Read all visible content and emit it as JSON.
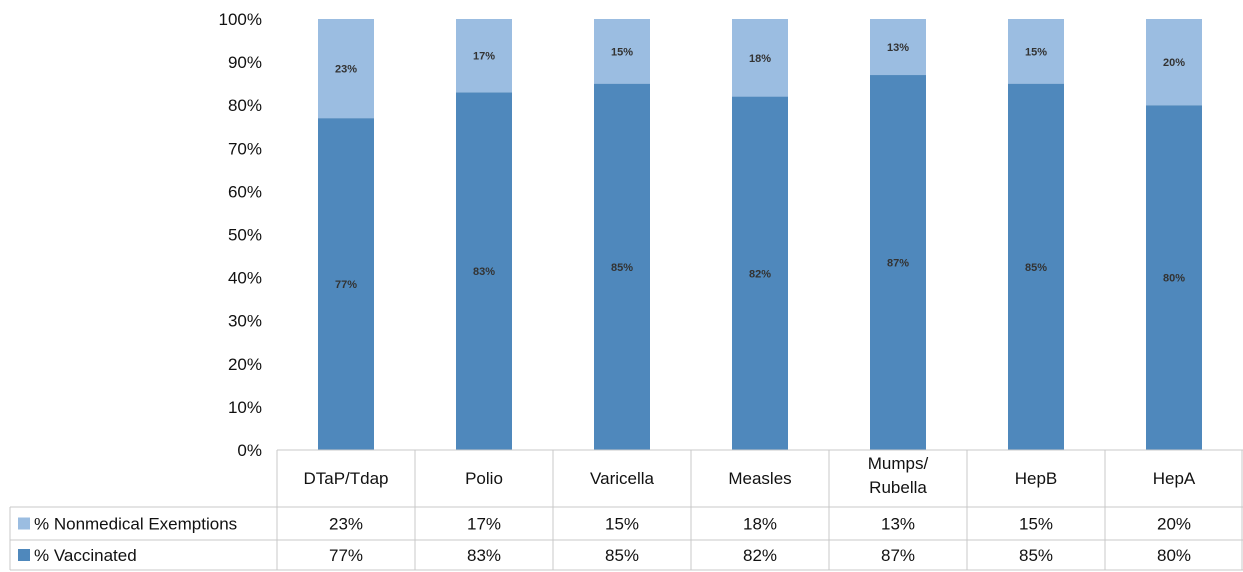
{
  "chart_data": {
    "type": "bar",
    "stacked": true,
    "categories": [
      "DTaP/Tdap",
      "Polio",
      "Varicella",
      "Measles",
      "Mumps/\nRubella",
      "HepB",
      "HepA"
    ],
    "series": [
      {
        "name": "% Vaccinated",
        "color": "#4f88bc",
        "values": [
          77,
          83,
          85,
          82,
          87,
          85,
          80
        ],
        "labels": [
          "77%",
          "83%",
          "85%",
          "82%",
          "87%",
          "85%",
          "80%"
        ]
      },
      {
        "name": "% Nonmedical Exemptions",
        "color": "#9bbde1",
        "values": [
          23,
          17,
          15,
          18,
          13,
          15,
          20
        ],
        "labels": [
          "23%",
          "17%",
          "15%",
          "18%",
          "13%",
          "15%",
          "20%"
        ]
      }
    ],
    "ylim": [
      0,
      100
    ],
    "yticks": [
      "0%",
      "10%",
      "20%",
      "30%",
      "40%",
      "50%",
      "60%",
      "70%",
      "80%",
      "90%",
      "100%"
    ],
    "title": "",
    "xlabel": "",
    "ylabel": "",
    "grid": false,
    "legend": "data-table"
  }
}
